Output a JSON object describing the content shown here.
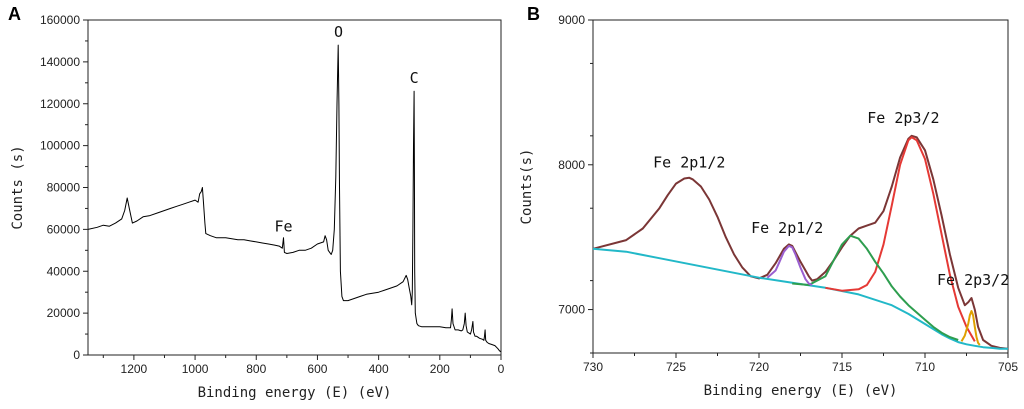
{
  "chart_data": [
    {
      "type": "line",
      "panel_label": "A",
      "xlabel": "Binding energy (E) (eV)",
      "ylabel": "Counts (s)",
      "xlim": [
        1350,
        0
      ],
      "ylim": [
        0,
        160000
      ],
      "x_ticks": [
        1200,
        1000,
        800,
        600,
        400,
        200,
        0
      ],
      "y_ticks": [
        0,
        20000,
        40000,
        60000,
        80000,
        100000,
        120000,
        140000,
        160000
      ],
      "annotations": [
        {
          "text": "O",
          "x": 531,
          "y": 152000
        },
        {
          "text": "C",
          "x": 284,
          "y": 130000
        },
        {
          "text": "Fe",
          "x": 711,
          "y": 59000
        }
      ],
      "series": [
        {
          "name": "survey",
          "color": "#000000",
          "x": [
            1350,
            1320,
            1300,
            1280,
            1260,
            1240,
            1230,
            1222,
            1215,
            1205,
            1190,
            1170,
            1150,
            1120,
            1100,
            1080,
            1060,
            1040,
            1020,
            1000,
            990,
            985,
            980,
            976,
            972,
            968,
            965,
            950,
            930,
            900,
            880,
            860,
            840,
            820,
            800,
            780,
            760,
            740,
            725,
            715,
            711,
            708,
            700,
            680,
            660,
            640,
            620,
            600,
            580,
            575,
            570,
            565,
            560,
            555,
            550,
            545,
            540,
            536,
            532,
            530,
            528,
            525,
            520,
            515,
            510,
            500,
            480,
            460,
            440,
            420,
            400,
            380,
            360,
            340,
            320,
            310,
            305,
            300,
            295,
            292,
            290,
            288,
            286,
            284,
            283,
            282,
            280,
            275,
            270,
            260,
            250,
            240,
            220,
            200,
            180,
            170,
            165,
            162,
            160,
            157,
            150,
            140,
            130,
            125,
            120,
            117,
            114,
            110,
            100,
            96,
            92,
            90,
            85,
            80,
            70,
            60,
            56,
            54,
            52,
            50,
            45,
            40,
            30,
            20,
            10,
            5,
            0
          ],
          "y": [
            60000,
            61000,
            62000,
            61500,
            63000,
            65000,
            69000,
            75000,
            70000,
            63000,
            64000,
            66000,
            66500,
            68000,
            69000,
            70000,
            71000,
            72000,
            73000,
            74000,
            73000,
            77000,
            78000,
            80000,
            72000,
            63000,
            58000,
            57000,
            56000,
            56000,
            55500,
            55000,
            55000,
            54500,
            54000,
            53500,
            53000,
            52500,
            52000,
            51000,
            56000,
            49000,
            48500,
            49000,
            50000,
            50000,
            51000,
            53000,
            54000,
            57000,
            55000,
            50000,
            49000,
            48000,
            50000,
            60000,
            85000,
            120000,
            148000,
            120000,
            80000,
            40000,
            28000,
            26000,
            26000,
            26000,
            27000,
            28000,
            29000,
            29500,
            30000,
            31000,
            32000,
            33000,
            35000,
            38000,
            36000,
            32000,
            28000,
            24000,
            30000,
            60000,
            100000,
            126000,
            90000,
            40000,
            20000,
            15000,
            14000,
            13500,
            13500,
            13500,
            13500,
            13500,
            13000,
            13000,
            13000,
            17000,
            22000,
            15000,
            12000,
            12000,
            11500,
            12000,
            15000,
            20000,
            14000,
            11000,
            10000,
            12000,
            16000,
            11000,
            9000,
            9000,
            8000,
            7500,
            7000,
            9000,
            12000,
            7000,
            6000,
            5500,
            5000,
            4500,
            3000,
            2000,
            1500
          ]
        }
      ]
    },
    {
      "type": "line",
      "panel_label": "B",
      "xlabel": "Binding energy (E) (eV)",
      "ylabel": "Counts(s)",
      "xlim": [
        730,
        705
      ],
      "ylim": [
        6700,
        9000
      ],
      "x_ticks": [
        730,
        725,
        720,
        715,
        710,
        705
      ],
      "y_ticks": [
        7000,
        8000,
        9000
      ],
      "annotations": [
        {
          "text": "Fe 2p1/2",
          "x": 724.2,
          "y": 7980
        },
        {
          "text": "Fe 2p1/2",
          "x": 718.3,
          "y": 7530
        },
        {
          "text": "Fe 2p3/2",
          "x": 711.3,
          "y": 8290
        },
        {
          "text": "Fe 2p3/2",
          "x": 707.1,
          "y": 7170
        }
      ],
      "series": [
        {
          "name": "envelope",
          "color": "#7b3636",
          "x": [
            730,
            728,
            727,
            726,
            725.5,
            725,
            724.5,
            724.2,
            724,
            723.5,
            723,
            722.5,
            722,
            721.5,
            721,
            720.5,
            720,
            719.5,
            719,
            718.5,
            718.2,
            718,
            717.5,
            717,
            716.8,
            716.5,
            716,
            715.5,
            715,
            714.5,
            714,
            713.5,
            713,
            712.5,
            712,
            711.5,
            711,
            710.8,
            710.5,
            710,
            709.5,
            709,
            708.5,
            708,
            707.6,
            707.4,
            707.2,
            707,
            706.8,
            706.5,
            706,
            705.5,
            705
          ],
          "y": [
            7420,
            7480,
            7560,
            7700,
            7790,
            7870,
            7905,
            7910,
            7900,
            7850,
            7760,
            7640,
            7500,
            7380,
            7290,
            7230,
            7215,
            7240,
            7320,
            7420,
            7450,
            7440,
            7330,
            7230,
            7200,
            7210,
            7260,
            7340,
            7430,
            7510,
            7560,
            7580,
            7600,
            7680,
            7850,
            8050,
            8180,
            8200,
            8190,
            8100,
            7900,
            7650,
            7380,
            7150,
            7030,
            7050,
            7080,
            7000,
            6880,
            6790,
            6750,
            6735,
            6730
          ]
        },
        {
          "name": "background",
          "color": "#22b8c8",
          "x": [
            730,
            728,
            726,
            724,
            722,
            720,
            718,
            716,
            714,
            712,
            711,
            710,
            709,
            708.5,
            708,
            707.5,
            707,
            706.5,
            706,
            705.5,
            705
          ],
          "y": [
            7420,
            7400,
            7355,
            7310,
            7265,
            7220,
            7185,
            7150,
            7105,
            7030,
            6970,
            6900,
            6830,
            6800,
            6775,
            6760,
            6750,
            6740,
            6735,
            6730,
            6730
          ]
        },
        {
          "name": "Fe 2p3/2 main",
          "color": "#e53935",
          "x": [
            716,
            715,
            714,
            713.5,
            713,
            712.5,
            712,
            711.5,
            711,
            710.8,
            710.5,
            710,
            709.5,
            709,
            708.5,
            708,
            707.5,
            707
          ],
          "y": [
            7150,
            7130,
            7140,
            7170,
            7260,
            7450,
            7720,
            8000,
            8170,
            8190,
            8170,
            8040,
            7800,
            7520,
            7240,
            7020,
            6880,
            6780
          ]
        },
        {
          "name": "Fe 2p3/2 satellite",
          "color": "#2e9e4f",
          "x": [
            718,
            717,
            716,
            715.5,
            715,
            714.5,
            714,
            713.5,
            713,
            712.5,
            712,
            711.5,
            711,
            710.5,
            710,
            709.5,
            709,
            708.5,
            708
          ],
          "y": [
            7180,
            7170,
            7230,
            7340,
            7450,
            7510,
            7490,
            7420,
            7330,
            7250,
            7160,
            7090,
            7030,
            6980,
            6930,
            6880,
            6840,
            6810,
            6790
          ]
        },
        {
          "name": "Fe 2p1/2 satellite",
          "color": "#9a5fd0",
          "x": [
            719.5,
            719,
            718.8,
            718.5,
            718.2,
            718,
            717.8,
            717.5,
            717.2,
            717,
            716.8
          ],
          "y": [
            7220,
            7270,
            7320,
            7400,
            7440,
            7430,
            7380,
            7290,
            7210,
            7180,
            7170
          ]
        },
        {
          "name": "Fe 2p3/2 low",
          "color": "#e0a000",
          "x": [
            707.8,
            707.6,
            707.4,
            707.3,
            707.2,
            707.1,
            707,
            706.9,
            706.8,
            706.7
          ],
          "y": [
            6780,
            6820,
            6900,
            6960,
            6990,
            6960,
            6880,
            6810,
            6770,
            6755
          ]
        }
      ]
    }
  ]
}
